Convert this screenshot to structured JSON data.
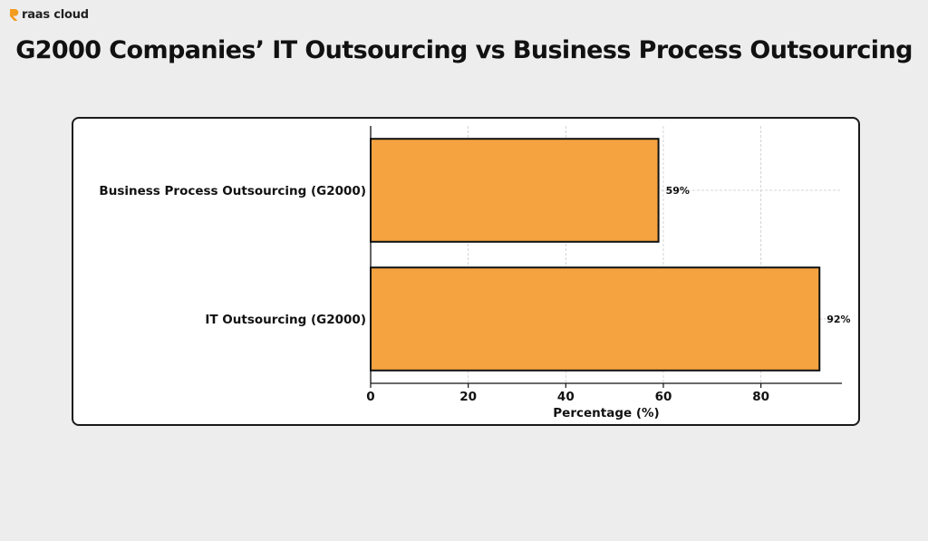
{
  "brand": {
    "name": "raas cloud",
    "icon": "raas-cloud-logo-icon",
    "color": "#f39c1f"
  },
  "page": {
    "title": "G2000 Companies’ IT Outsourcing vs Business Process Outsourcing"
  },
  "colors": {
    "bar_fill": "#f4a340",
    "bar_stroke": "#111111",
    "background": "#ededed"
  },
  "chart_data": {
    "type": "bar",
    "orientation": "horizontal",
    "categories": [
      "Business Process Outsourcing (G2000)",
      "IT Outsourcing (G2000)"
    ],
    "values": [
      59,
      92
    ],
    "data_labels": [
      "59%",
      "92%"
    ],
    "title": "",
    "xlabel": "Percentage (%)",
    "ylabel": "",
    "xlim": [
      0,
      96.6
    ],
    "xticks": [
      0,
      20,
      40,
      60,
      80
    ],
    "grid": true,
    "legend": "none"
  }
}
